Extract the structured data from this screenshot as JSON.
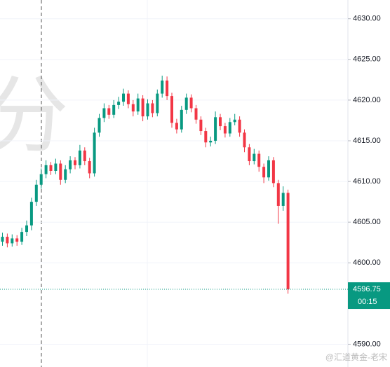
{
  "chart_data": {
    "type": "candlestick",
    "open": [
      4602.6,
      4603.2,
      4602.4,
      4603.0,
      4602.6,
      4603.8,
      4604.6,
      4607.5,
      4609.6,
      4610.9,
      4612.0,
      4611.3,
      4612.2,
      4610.2,
      4611.5,
      4612.6,
      4612.0,
      4613.8,
      4612.5,
      4611.0,
      4616.0,
      4617.8,
      4619.0,
      4618.2,
      4619.4,
      4619.8,
      4620.8,
      4619.5,
      4618.6,
      4620.2,
      4618.0,
      4619.6,
      4618.4,
      4620.8,
      4622.4,
      4620.5,
      4617.2,
      4616.4,
      4618.8,
      4620.3,
      4619.0,
      4617.6,
      4616.2,
      4614.8,
      4615.0,
      4617.9,
      4616.8,
      4615.9,
      4617.3,
      4617.6,
      4616.0,
      4614.2,
      4612.5,
      4613.4,
      4611.8,
      4610.5,
      4612.6,
      4609.8,
      4607.0,
      4608.6
    ],
    "high": [
      4603.7,
      4603.6,
      4603.5,
      4603.4,
      4604.3,
      4605.2,
      4608.0,
      4610.2,
      4611.6,
      4612.6,
      4612.4,
      4612.8,
      4612.6,
      4612.0,
      4613.1,
      4613.0,
      4614.5,
      4614.2,
      4612.9,
      4616.6,
      4618.3,
      4619.6,
      4619.4,
      4620.0,
      4620.4,
      4621.4,
      4621.2,
      4620.0,
      4620.8,
      4620.6,
      4620.1,
      4620.0,
      4621.3,
      4623.0,
      4622.9,
      4620.9,
      4617.7,
      4619.3,
      4620.8,
      4620.7,
      4619.4,
      4618.0,
      4616.6,
      4615.5,
      4618.6,
      4618.3,
      4617.2,
      4617.8,
      4618.3,
      4618.0,
      4616.4,
      4614.6,
      4614.0,
      4613.8,
      4612.2,
      4613.1,
      4613.0,
      4610.2,
      4609.4,
      4609.0
    ],
    "low": [
      4602.1,
      4601.9,
      4602.0,
      4602.1,
      4602.2,
      4603.3,
      4604.0,
      4607.0,
      4609.1,
      4610.4,
      4610.8,
      4610.9,
      4609.6,
      4609.8,
      4611.0,
      4611.5,
      4611.6,
      4612.0,
      4610.4,
      4610.6,
      4615.5,
      4617.3,
      4617.7,
      4617.8,
      4618.9,
      4619.3,
      4619.0,
      4618.0,
      4618.2,
      4617.4,
      4617.6,
      4617.9,
      4618.0,
      4620.3,
      4620.0,
      4616.6,
      4615.9,
      4616.0,
      4618.3,
      4618.5,
      4617.1,
      4615.7,
      4614.2,
      4614.3,
      4614.6,
      4616.3,
      4615.4,
      4615.5,
      4616.9,
      4615.5,
      4613.6,
      4612.0,
      4612.1,
      4611.2,
      4609.8,
      4610.1,
      4609.3,
      4604.8,
      4606.4,
      4596.2
    ],
    "close": [
      4603.2,
      4602.4,
      4603.0,
      4602.6,
      4603.8,
      4604.6,
      4607.5,
      4609.6,
      4610.9,
      4612.0,
      4611.3,
      4612.2,
      4610.2,
      4611.5,
      4612.6,
      4612.0,
      4613.8,
      4612.5,
      4611.0,
      4616.0,
      4617.8,
      4619.0,
      4618.2,
      4619.4,
      4619.8,
      4620.8,
      4619.5,
      4618.6,
      4620.2,
      4618.0,
      4619.6,
      4618.4,
      4620.8,
      4622.4,
      4620.5,
      4617.2,
      4616.4,
      4618.8,
      4620.3,
      4619.0,
      4617.6,
      4616.2,
      4614.8,
      4615.0,
      4617.9,
      4616.8,
      4615.9,
      4617.3,
      4617.6,
      4616.0,
      4614.2,
      4612.5,
      4613.4,
      4611.8,
      4610.5,
      4612.6,
      4609.8,
      4607.0,
      4608.6,
      4596.75
    ],
    "up_color": "#089981",
    "down_color": "#f23645",
    "ylim": [
      4587.2,
      4632.3
    ],
    "yticks": [
      {
        "value": 4590,
        "label": "4590.00"
      },
      {
        "value": 4600,
        "label": "4600.00"
      },
      {
        "value": 4605,
        "label": "4605.00"
      },
      {
        "value": 4610,
        "label": "4610.00"
      },
      {
        "value": 4615,
        "label": "4615.00"
      },
      {
        "value": 4620,
        "label": "4620.00"
      },
      {
        "value": 4625,
        "label": "4625.00"
      },
      {
        "value": 4630,
        "label": "4630.00"
      }
    ],
    "grid": true,
    "last_price": 4596.75,
    "countdown": "00:15",
    "last_price_color": "#089981",
    "watermark": "分",
    "credit": "@汇道黄金-老宋"
  }
}
